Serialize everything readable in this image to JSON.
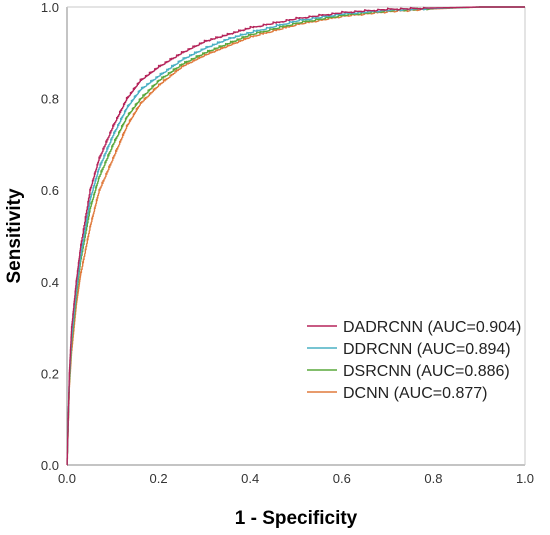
{
  "chart_data": {
    "type": "line",
    "title": "",
    "xlabel": "1 - Specificity",
    "ylabel": "Sensitivity",
    "xlim": [
      0,
      1
    ],
    "ylim": [
      0,
      1
    ],
    "xticks": [
      "0.0",
      "0.2",
      "0.4",
      "0.6",
      "0.8",
      "1.0"
    ],
    "yticks": [
      "0.0",
      "0.2",
      "0.4",
      "0.6",
      "0.8",
      "1.0"
    ],
    "grid": false,
    "legend_position": "bottom-right",
    "series": [
      {
        "name": "DADRCNN (AUC=0.904)",
        "color": "#b5245a",
        "x": [
          0,
          0.005,
          0.01,
          0.02,
          0.03,
          0.05,
          0.07,
          0.1,
          0.13,
          0.16,
          0.2,
          0.25,
          0.3,
          0.35,
          0.4,
          0.5,
          0.6,
          0.7,
          0.8,
          0.9,
          1.0
        ],
        "y": [
          0,
          0.2,
          0.3,
          0.4,
          0.48,
          0.6,
          0.67,
          0.74,
          0.8,
          0.84,
          0.87,
          0.9,
          0.925,
          0.94,
          0.955,
          0.975,
          0.988,
          0.995,
          0.998,
          1.0,
          1.0
        ]
      },
      {
        "name": "DDRCNN (AUC=0.894)",
        "color": "#4ab0c4",
        "x": [
          0,
          0.005,
          0.01,
          0.02,
          0.03,
          0.05,
          0.07,
          0.1,
          0.13,
          0.16,
          0.2,
          0.25,
          0.3,
          0.35,
          0.4,
          0.5,
          0.6,
          0.7,
          0.8,
          0.9,
          1.0
        ],
        "y": [
          0,
          0.19,
          0.28,
          0.38,
          0.46,
          0.58,
          0.65,
          0.72,
          0.78,
          0.82,
          0.85,
          0.885,
          0.91,
          0.93,
          0.945,
          0.97,
          0.985,
          0.993,
          0.997,
          1.0,
          1.0
        ]
      },
      {
        "name": "DSRCNN (AUC=0.886)",
        "color": "#5aa83c",
        "x": [
          0,
          0.005,
          0.01,
          0.02,
          0.03,
          0.05,
          0.07,
          0.1,
          0.13,
          0.16,
          0.2,
          0.25,
          0.3,
          0.35,
          0.4,
          0.5,
          0.6,
          0.7,
          0.8,
          0.9,
          1.0
        ],
        "y": [
          0,
          0.18,
          0.27,
          0.37,
          0.45,
          0.56,
          0.63,
          0.7,
          0.76,
          0.8,
          0.84,
          0.875,
          0.9,
          0.92,
          0.94,
          0.965,
          0.982,
          0.992,
          0.997,
          1.0,
          1.0
        ]
      },
      {
        "name": "DCNN (AUC=0.877)",
        "color": "#e07a3c",
        "x": [
          0,
          0.005,
          0.01,
          0.02,
          0.03,
          0.05,
          0.07,
          0.1,
          0.13,
          0.16,
          0.2,
          0.25,
          0.3,
          0.35,
          0.4,
          0.5,
          0.6,
          0.7,
          0.8,
          0.9,
          1.0
        ],
        "y": [
          0,
          0.17,
          0.25,
          0.35,
          0.42,
          0.52,
          0.6,
          0.67,
          0.74,
          0.79,
          0.83,
          0.87,
          0.895,
          0.915,
          0.935,
          0.962,
          0.98,
          0.99,
          0.996,
          1.0,
          1.0
        ]
      }
    ]
  }
}
